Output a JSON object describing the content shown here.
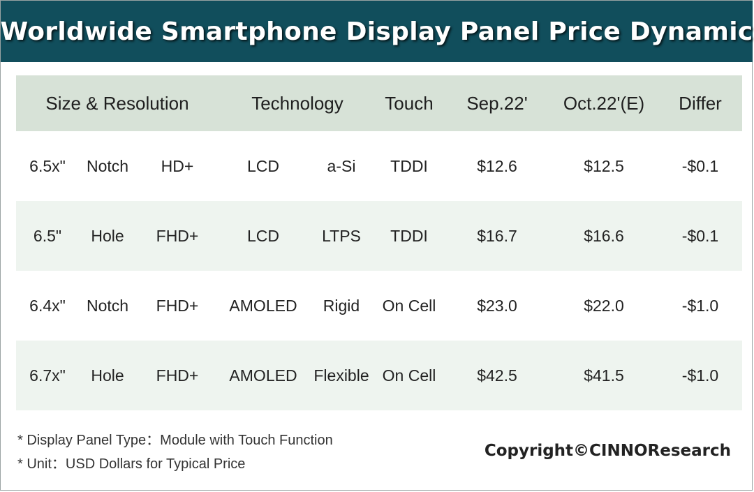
{
  "title": "Worldwide Smartphone Display Panel Price Dynamic",
  "chart_data": {
    "type": "table",
    "title": "Worldwide Smartphone Display Panel Price Dynamic",
    "header": [
      "Size & Resolution",
      "Technology",
      "Touch",
      "Sep.22'",
      "Oct.22'(E)",
      "Differ"
    ],
    "rows": [
      [
        "6.5x\"",
        "Notch",
        "HD+",
        "LCD",
        "a-Si",
        "TDDI",
        "$12.6",
        "$12.5",
        "-$0.1"
      ],
      [
        "6.5\"",
        "Hole",
        "FHD+",
        "LCD",
        "LTPS",
        "TDDI",
        "$16.7",
        "$16.6",
        "-$0.1"
      ],
      [
        "6.4x\"",
        "Notch",
        "FHD+",
        "AMOLED",
        "Rigid",
        "On Cell",
        "$23.0",
        "$22.0",
        "-$1.0"
      ],
      [
        "6.7x\"",
        "Hole",
        "FHD+",
        "AMOLED",
        "Flexible",
        "On Cell",
        "$42.5",
        "$41.5",
        "-$1.0"
      ]
    ]
  },
  "footnotes": [
    "* Display Panel Type：Module with Touch Function",
    "* Unit：USD Dollars for Typical Price"
  ],
  "copyright": "Copyright©CINNOResearch",
  "colors": {
    "title_bar": "#114e5c",
    "header_row": "#d7e2d7",
    "shaded_row": "#eef4ef"
  }
}
